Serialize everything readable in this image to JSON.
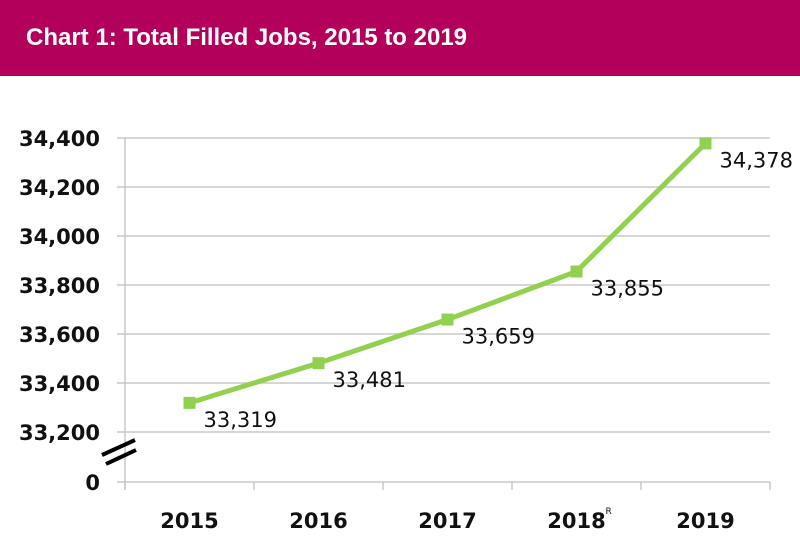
{
  "header": {
    "title": "Chart 1: Total Filled Jobs, 2015 to 2019",
    "background_color": "#b3005a",
    "text_color": "#ffffff"
  },
  "chart_data": {
    "type": "line",
    "title": "Chart 1: Total Filled Jobs, 2015 to 2019",
    "xlabel": "",
    "ylabel": "",
    "categories": [
      "2015",
      "2016",
      "2017",
      "2018",
      "2019"
    ],
    "category_superscripts": [
      "",
      "",
      "",
      "R",
      ""
    ],
    "series": [
      {
        "name": "Total Filled Jobs",
        "values": [
          33319,
          33481,
          33659,
          33855,
          34378
        ],
        "labels": [
          "33,319",
          "33,481",
          "33,659",
          "33,855",
          "34,378"
        ],
        "color": "#92d050",
        "marker": "square"
      }
    ],
    "ylim": [
      33200,
      34400
    ],
    "y_ticks": [
      0,
      33200,
      33400,
      33600,
      33800,
      34000,
      34200,
      34400
    ],
    "y_tick_labels": [
      "0",
      "33,200",
      "33,400",
      "33,600",
      "33,800",
      "34,000",
      "34,200",
      "34,400"
    ],
    "y_axis_break": true,
    "grid": true,
    "legend": "none",
    "gridline_color": "#c8c8c8"
  }
}
